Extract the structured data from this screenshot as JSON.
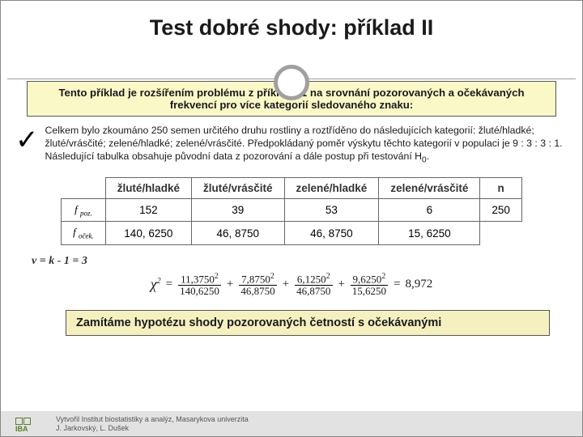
{
  "title": "Test dobré shody: příklad II",
  "intro_box": "Tento příklad je rozšířením problému z příkladu 1 na srovnání pozorovaných a očekávaných frekvencí pro více kategorií sledovaného znaku:",
  "body_text": "Celkem bylo zkoumáno 250 semen určitého druhu rostliny a roztříděno do následujících kategorií: žluté/hladké; žluté/vrásčité; zelené/hladké; zelené/vrásčité. Předpokládaný poměr výskytu těchto kategorií v populaci je 9 : 3 : 3 : 1. Následující tabulka obsahuje původní data z pozorování a dále postup při testování H",
  "body_text_sub": "0",
  "body_text_end": ".",
  "table": {
    "headers": [
      "žluté/hladké",
      "žluté/vrásčité",
      "zelené/hladké",
      "zelené/vrásčité",
      "n"
    ],
    "row1_label_main": "f",
    "row1_label_sub": "poz.",
    "row1": [
      "152",
      "39",
      "53",
      "6",
      "250"
    ],
    "row2_label_main": "f",
    "row2_label_sub": "oček.",
    "row2": [
      "140, 6250",
      "46, 8750",
      "46, 8750",
      "15, 6250",
      ""
    ]
  },
  "nu": "ν = k - 1 = 3",
  "formula": {
    "lhs": "χ",
    "eq": "=",
    "f1_num": "11,3750",
    "f1_sup": "2",
    "f1_den": "140,6250",
    "plus": "+",
    "f2_num": "7,8750",
    "f2_sup": "2",
    "f2_den": "46,8750",
    "f3_num": "6,1250",
    "f3_sup": "2",
    "f3_den": "46,8750",
    "f4_num": "9,6250",
    "f4_sup": "2",
    "f4_den": "15,6250",
    "result": "8,972"
  },
  "conclusion": "Zamítáme hypotézu shody pozorovaných četností s očekávanými",
  "footer_line1": "Vytvořil Institut biostatistiky a analýz, Masarykova univerzita",
  "footer_line2": "J. Jarkovský, L. Dušek",
  "logo_text": "IBA",
  "colors": {
    "yellow_bg": "#fbf8c8",
    "footer_bg": "#e2e2e2",
    "circle_border": "#a0a0a0"
  }
}
